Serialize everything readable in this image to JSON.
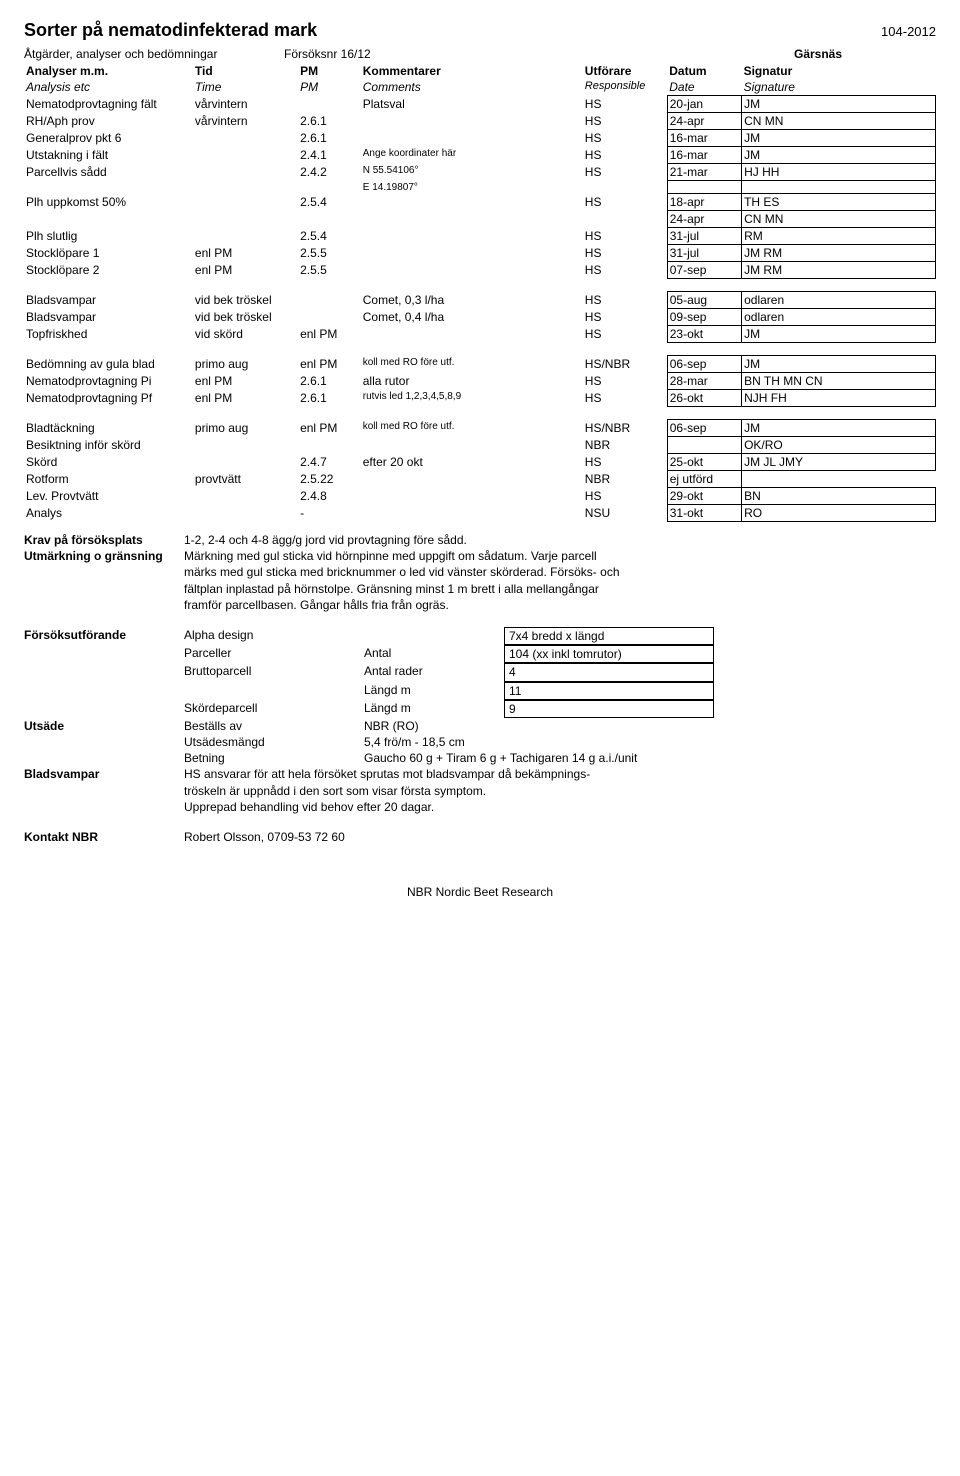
{
  "header": {
    "title": "Sorter på nematodinfekterad mark",
    "code": "104-2012",
    "sub1_l": "Åtgärder, analyser och bedömningar",
    "sub1_m": "Försöksnr 16/12",
    "sub1_r": "Gärsnäs",
    "sub2_a": "Analyser m.m.",
    "sub2_b": "Tid",
    "sub2_c": "PM",
    "sub2_d": "Kommentarer",
    "sub2_e": "Utförare",
    "sub2_f": "Datum",
    "sub2_g": "Signatur",
    "sub3_a": "Analysis etc",
    "sub3_b": "Time",
    "sub3_c": "PM",
    "sub3_d": "Comments",
    "sub3_e": "Responsible",
    "sub3_f": "Date",
    "sub3_g": "Signature"
  },
  "rows": [
    {
      "a": "Nematodprovtagning fält",
      "b": "vårvintern",
      "c": "",
      "d": "Platsval",
      "e": "HS",
      "f": "20-jan",
      "g": "JM"
    },
    {
      "a": "RH/Aph prov",
      "b": "vårvintern",
      "c": "2.6.1",
      "d": "",
      "e": "HS",
      "f": "24-apr",
      "g": "CN MN"
    },
    {
      "a": "Generalprov pkt 6",
      "b": "",
      "c": "2.6.1",
      "d": "",
      "e": "HS",
      "f": "16-mar",
      "g": "JM"
    },
    {
      "a": "Utstakning i fält",
      "b": "",
      "c": "2.4.1",
      "d": "Ange koordinater här",
      "dsmall": true,
      "e": "HS",
      "f": "16-mar",
      "g": "JM"
    },
    {
      "a": "Parcellvis sådd",
      "b": "",
      "c": "2.4.2",
      "d": "N 55.54106°",
      "dsmall": true,
      "e": "HS",
      "f": "21-mar",
      "g": "HJ HH"
    },
    {
      "a": "",
      "b": "",
      "c": "",
      "d": "E 14.19807°",
      "dsmall": true,
      "e": "",
      "f": "",
      "g": ""
    },
    {
      "a": "Plh uppkomst 50%",
      "b": "",
      "c": "2.5.4",
      "d": "",
      "e": "HS",
      "f": "18-apr",
      "g": "TH ES"
    },
    {
      "a": "",
      "b": "",
      "c": "",
      "d": "",
      "e": "",
      "f": "24-apr",
      "g": "CN MN"
    },
    {
      "a": "Plh slutlig",
      "b": "",
      "c": "2.5.4",
      "d": "",
      "e": "HS",
      "f": "31-jul",
      "g": "RM"
    },
    {
      "a": "Stocklöpare 1",
      "b": "enl PM",
      "c": "2.5.5",
      "d": "",
      "e": "HS",
      "f": "31-jul",
      "g": "JM RM"
    },
    {
      "a": "Stocklöpare 2",
      "b": "enl PM",
      "c": "2.5.5",
      "d": "",
      "e": "HS",
      "f": "07-sep",
      "g": "JM RM"
    }
  ],
  "rows2": [
    {
      "a": "Bladsvampar",
      "b": "vid bek tröskel",
      "c": "",
      "d": "Comet, 0,3 l/ha",
      "e": "HS",
      "f": "05-aug",
      "g": "odlaren"
    },
    {
      "a": "Bladsvampar",
      "b": "vid bek tröskel",
      "c": "",
      "d": "Comet, 0,4 l/ha",
      "e": "HS",
      "f": "09-sep",
      "g": "odlaren"
    },
    {
      "a": "Topfriskhed",
      "b": "vid skörd",
      "c": "enl PM",
      "d": "",
      "e": "HS",
      "f": "23-okt",
      "g": "JM"
    }
  ],
  "rows3": [
    {
      "a": "Bedömning av gula blad",
      "b": "primo aug",
      "c": "enl PM",
      "d": "koll med RO före utf.",
      "dsmall": true,
      "e": "HS/NBR",
      "f": "06-sep",
      "g": "JM"
    },
    {
      "a": "Nematodprovtagning Pi",
      "b": "enl PM",
      "c": "2.6.1",
      "d": "alla rutor",
      "e": "HS",
      "f": "28-mar",
      "g": "BN TH MN CN"
    },
    {
      "a": "Nematodprovtagning Pf",
      "b": "enl PM",
      "c": "2.6.1",
      "d": "rutvis led 1,2,3,4,5,8,9",
      "dsmall": true,
      "e": "HS",
      "f": "26-okt",
      "g": "NJH FH"
    }
  ],
  "rows4": [
    {
      "a": "Bladtäckning",
      "b": "primo aug",
      "c": "enl PM",
      "d": "koll med RO före utf.",
      "dsmall": true,
      "e": "HS/NBR",
      "f": "06-sep",
      "g": "JM"
    },
    {
      "a": "Besiktning inför skörd",
      "b": "",
      "c": "",
      "d": "",
      "e": "NBR",
      "f": "",
      "g": "OK/RO"
    },
    {
      "a": "Skörd",
      "b": "",
      "c": "2.4.7",
      "d": "efter 20 okt",
      "e": "HS",
      "f": "25-okt",
      "g": "JM JL JMY"
    },
    {
      "a": "Rotform",
      "b": "provtvätt",
      "c": "2.5.22",
      "d": "",
      "e": "NBR",
      "f": "ej utförd",
      "g": "",
      "gnob": true
    },
    {
      "a": "Lev. Provtvätt",
      "b": "",
      "c": "2.4.8",
      "d": "",
      "e": "HS",
      "f": "29-okt",
      "g": "BN"
    },
    {
      "a": "Analys",
      "b": "",
      "c": "-",
      "d": "",
      "e": "NSU",
      "f": "31-okt",
      "g": "RO"
    }
  ],
  "sec2": {
    "krav_l": "Krav på försöksplats",
    "krav_t": "1-2, 2-4 och 4-8 ägg/g jord vid provtagning före sådd.",
    "utm_l": "Utmärkning o gränsning",
    "utm_t1": "Märkning med gul sticka vid hörnpinne med uppgift om sådatum. Varje parcell",
    "utm_t2": "märks med gul sticka med bricknummer o led vid vänster skörderad. Försöks- och",
    "utm_t3": "fältplan inplastad på hörnstolpe. Gränsning minst 1 m brett i alla mellangångar",
    "utm_t4": "framför parcellbasen. Gångar hålls fria från ogräs.",
    "forsok_l": "Försöksutförande",
    "f_rows": [
      {
        "m": "Alpha design",
        "m3": "",
        "r": "7x4 bredd x längd",
        "box": true
      },
      {
        "m": "Parceller",
        "m3": "Antal",
        "r": "104 (xx inkl tomrutor)",
        "box": true
      },
      {
        "m": "Bruttoparcell",
        "m3": "Antal rader",
        "r": "4",
        "box": true
      },
      {
        "m": "",
        "m3": "Längd m",
        "r": "11",
        "box": true
      },
      {
        "m": "Skördeparcell",
        "m3": "Längd m",
        "r": "9",
        "box": true
      }
    ],
    "utsade_l": "Utsäde",
    "u_rows": [
      {
        "m": "Beställs av",
        "m3": "NBR (RO)"
      },
      {
        "m": "Utsädesmängd",
        "m3": "5,4 frö/m - 18,5 cm"
      },
      {
        "m": "Betning",
        "m3": "Gaucho 60 g + Tiram 6 g + Tachigaren 14 g a.i./unit"
      }
    ],
    "blad_l": "Bladsvampar",
    "blad_t1": "HS ansvarar för att hela försöket sprutas mot bladsvampar då bekämpnings-",
    "blad_t2": "tröskeln är uppnådd i den sort som visar första symptom.",
    "blad_t3": "Upprepad behandling vid behov efter 20 dagar.",
    "kontakt_l": "Kontakt NBR",
    "kontakt_t": "Robert Olsson, 0709-53 72 60"
  },
  "footer": "NBR Nordic Beet Research"
}
